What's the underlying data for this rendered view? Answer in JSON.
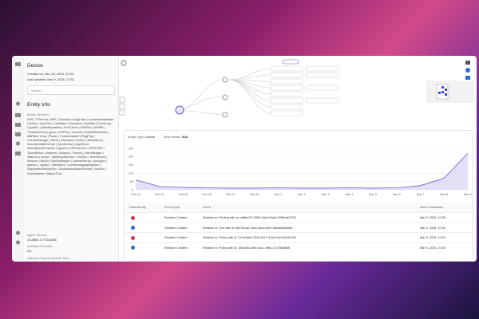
{
  "sidebar": {
    "title": "Device",
    "created": "Created on: Dec 25, 2024, 10:04",
    "updated": "Last updated: Mar 9, 2025, 17:51",
    "search": "Search...",
    "section": "Entity Info",
    "services_label": "Active Services",
    "services": "DPS | TTService | BFE | Schedule | DiagTrack | LanmanWorkstation | NlaSvc | AppXSvc | LsaStatus | Dnscache | SysMain | EventLog | CryptSvc | StateRepository | FontCache | DSMSvc | WinRM | TimeBrokerSvc | gpsvc | CDPSvc | lmhosts | ShellHWDetection | WdFilter | Dhcp | Power | TrustedInstaller | PlugPlay | LicenseManager | SENS | Winmgmt | UsoSvc | WinDefend | SecurityHealthService | WpnService | AppIDSvc | WinHttpAutoProxySvc | AppInfo | CDPUserSvc | SSDPSRV | TokenBroker | netprofm | iphlpsvc | Themes | UserManager | WlanSvc | Sense | TabletInputService | ProfSvc | TermService | Wcmsvc | RpcSs | RpcEptMapper | LanmanServer | seclogon | MpsSvc | mpssvc | WdNisSvc | CoreMessagingRegistrar | DispBrokerDesktopSvc | DeviceAssociationService | StorSvc | EventSystem | WarpJITSvc",
    "agent_label": "Agent Version",
    "agent": "10.8805.17743.8368",
    "av_label": "Antivirus Enabled",
    "av": "On",
    "av_update_label": "Antivirus Engine Update Time"
  },
  "events": {
    "entity_type_label": "Entity Type:",
    "entity_type": "Device",
    "total_label": "Total events:",
    "total": "518",
    "columns": [
      "Detected By",
      "Event Type",
      "Event",
      "Event Timestamp"
    ],
    "rows": [
      [
        "Relation Created",
        "Relation to: Finding with id: ad8ba27f-2899-43e6-b0a6-1458ba672f7d",
        "Mar 9, 2025, 10:06"
      ],
      [
        "Relation Created",
        "Relation to: Cve with id: 6b47bba8-75ed-4bca-b637-bab8a6f5a6ba",
        "Mar 9, 2025, 10:06"
      ],
      [
        "Relation Created",
        "Relation to: Policy with id: 7a7a3ae8-7642-4317-91cb-91e135190765",
        "Mar 9, 2025, 10:03"
      ],
      [
        "Relation Created",
        "Relation to: Policy with id: 33f4d4f4-4f6e-4ac1-9f8b-1727f86ab06",
        "Mar 9, 2025, 10:03"
      ]
    ]
  },
  "chart_data": {
    "type": "line",
    "categories": [
      "Feb 23",
      "Feb 24",
      "Feb 25",
      "Feb 26",
      "Feb 27",
      "Feb 28",
      "Mar 1",
      "Mar 2",
      "Mar 3",
      "Mar 4",
      "Mar 5",
      "Mar 6",
      "Mar 7",
      "Mar 8",
      "Mar 9"
    ],
    "values": [
      60,
      20,
      15,
      12,
      10,
      10,
      12,
      10,
      10,
      12,
      10,
      12,
      25,
      70,
      220
    ],
    "color": "#6b52d6",
    "ylim": [
      0,
      250
    ],
    "yticks": [
      0,
      50,
      100,
      150,
      200,
      250
    ]
  }
}
